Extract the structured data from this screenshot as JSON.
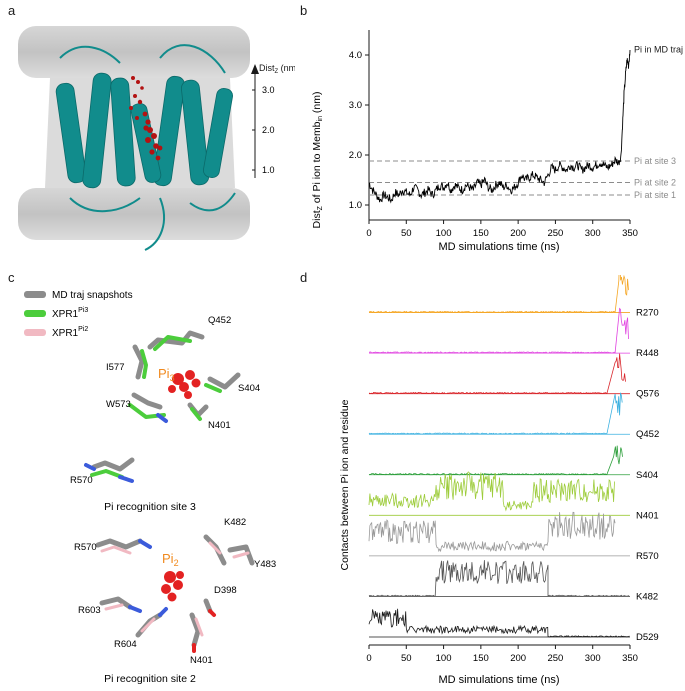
{
  "panels": {
    "a": {
      "label": "a",
      "axis_title": "Dist",
      "axis_sub": "Z",
      "axis_unit": " (nm)",
      "ticks": [
        "3.0",
        "2.0",
        "1.0"
      ]
    },
    "b": {
      "label": "b",
      "ylabel_prefix": "Dist",
      "ylabel_sub1": "Z",
      "ylabel_mid": " of Pi ion to Memb",
      "ylabel_sub2": "in",
      "ylabel_suffix": " (nm)",
      "xlabel": "MD simulations time (ns)",
      "series_label": "Pi in MD traj",
      "site_labels": [
        "Pi at site 3",
        "Pi at site 2",
        "Pi at site 1"
      ]
    },
    "c": {
      "label": "c",
      "legend": [
        {
          "text": "MD traj snapshots",
          "sup": "",
          "color": "#8c8c8c"
        },
        {
          "text": "XPR1",
          "sup": "Pi3",
          "color": "#4ccd3c"
        },
        {
          "text": "XPR1",
          "sup": "Pi2",
          "color": "#f1b9c2"
        }
      ],
      "site3": {
        "title": "Pi recognition site 3",
        "pi_label": "Pi",
        "pi_sub": "3",
        "residues": [
          "Q452",
          "I577",
          "W573",
          "S404",
          "N401",
          "R570"
        ]
      },
      "site2": {
        "title": "Pi recognition site 2",
        "pi_label": "Pi",
        "pi_sub": "2",
        "residues": [
          "K482",
          "R570",
          "Y483",
          "D398",
          "R603",
          "R604",
          "N401"
        ]
      }
    },
    "d": {
      "label": "d",
      "ylabel": "Contacts between Pi ion and residue",
      "xlabel": "MD simulations time (ns)"
    }
  },
  "chart_data": [
    {
      "type": "line",
      "panel": "b",
      "xlabel": "MD simulations time (ns)",
      "ylabel": "Dist_Z of Pi ion to Memb_in (nm)",
      "xlim": [
        0,
        350
      ],
      "ylim": [
        0.7,
        4.5
      ],
      "xticks": [
        0,
        50,
        100,
        150,
        200,
        250,
        300,
        350
      ],
      "yticks": [
        1.0,
        2.0,
        3.0,
        4.0
      ],
      "grid": false,
      "series": [
        {
          "name": "Pi in MD traj",
          "color": "#000000",
          "x": [
            0,
            5,
            10,
            15,
            20,
            25,
            30,
            35,
            40,
            45,
            50,
            55,
            60,
            65,
            70,
            75,
            80,
            85,
            90,
            95,
            100,
            105,
            110,
            115,
            120,
            125,
            130,
            135,
            140,
            145,
            150,
            155,
            160,
            165,
            170,
            175,
            180,
            185,
            190,
            195,
            200,
            205,
            210,
            215,
            220,
            225,
            230,
            235,
            240,
            245,
            250,
            255,
            260,
            265,
            270,
            275,
            280,
            285,
            290,
            295,
            300,
            305,
            310,
            315,
            320,
            325,
            330,
            335,
            338,
            340,
            342,
            344,
            346,
            348,
            350
          ],
          "y": [
            1.45,
            1.3,
            1.2,
            1.1,
            1.2,
            1.15,
            1.1,
            1.25,
            1.2,
            1.3,
            1.25,
            1.2,
            1.35,
            1.3,
            1.2,
            1.25,
            1.3,
            1.2,
            1.3,
            1.4,
            1.35,
            1.45,
            1.3,
            1.4,
            1.35,
            1.3,
            1.4,
            1.35,
            1.3,
            1.45,
            1.4,
            1.5,
            1.35,
            1.3,
            1.4,
            1.45,
            1.35,
            1.4,
            1.3,
            1.35,
            1.45,
            1.6,
            1.5,
            1.55,
            1.6,
            1.55,
            1.5,
            1.45,
            1.6,
            1.75,
            1.7,
            1.8,
            1.75,
            1.7,
            1.8,
            1.75,
            1.8,
            1.7,
            1.75,
            1.8,
            1.75,
            1.8,
            1.85,
            1.8,
            1.75,
            1.8,
            1.9,
            1.85,
            2.0,
            2.6,
            3.2,
            3.6,
            3.9,
            3.8,
            4.1
          ]
        }
      ],
      "reference_lines": [
        {
          "label": "Pi at site 3",
          "y": 1.88,
          "style": "dashed",
          "color": "#8c8c8c"
        },
        {
          "label": "Pi at site 2",
          "y": 1.45,
          "style": "dashed",
          "color": "#8c8c8c"
        },
        {
          "label": "Pi at site 1",
          "y": 1.2,
          "style": "dashed",
          "color": "#8c8c8c"
        }
      ]
    },
    {
      "type": "line",
      "panel": "d",
      "xlabel": "MD simulations time (ns)",
      "ylabel": "Contacts between Pi ion and residue",
      "xlim": [
        0,
        350
      ],
      "xticks": [
        0,
        50,
        100,
        150,
        200,
        250,
        300,
        350
      ],
      "grid": false,
      "series": [
        {
          "name": "R270",
          "color": "#f5a623",
          "segments": [
            [
              0,
              330,
              0
            ],
            [
              335,
              340,
              0.9
            ],
            [
              342,
              348,
              0.6
            ]
          ]
        },
        {
          "name": "R448",
          "color": "#e040e0",
          "segments": [
            [
              0,
              330,
              0
            ],
            [
              336,
              340,
              0.7
            ],
            [
              342,
              348,
              0.5
            ]
          ]
        },
        {
          "name": "Q576",
          "color": "#d9262b",
          "segments": [
            [
              0,
              320,
              0.05
            ],
            [
              330,
              336,
              0.6
            ],
            [
              338,
              344,
              0.4
            ]
          ]
        },
        {
          "name": "Q452",
          "color": "#3ab0e0",
          "segments": [
            [
              0,
              320,
              0.05
            ],
            [
              330,
              340,
              0.6
            ]
          ]
        },
        {
          "name": "S404",
          "color": "#2e9f3c",
          "segments": [
            [
              0,
              320,
              0.05
            ],
            [
              328,
              340,
              0.4
            ]
          ]
        },
        {
          "name": "N401",
          "color": "#9dcc3a",
          "segments": [
            [
              0,
              90,
              0.3
            ],
            [
              90,
              180,
              0.6
            ],
            [
              180,
              220,
              0.2
            ],
            [
              220,
              330,
              0.5
            ]
          ]
        },
        {
          "name": "R570",
          "color": "#9a9a9a",
          "segments": [
            [
              0,
              90,
              0.5
            ],
            [
              90,
              240,
              0.2
            ],
            [
              240,
              330,
              0.6
            ]
          ]
        },
        {
          "name": "K482",
          "color": "#555555",
          "segments": [
            [
              0,
              90,
              0.05
            ],
            [
              90,
              240,
              0.5
            ],
            [
              240,
              350,
              0.02
            ]
          ]
        },
        {
          "name": "D529",
          "color": "#1a1a1a",
          "segments": [
            [
              0,
              50,
              0.4
            ],
            [
              50,
              240,
              0.15
            ],
            [
              240,
              350,
              0.02
            ]
          ]
        }
      ]
    }
  ]
}
